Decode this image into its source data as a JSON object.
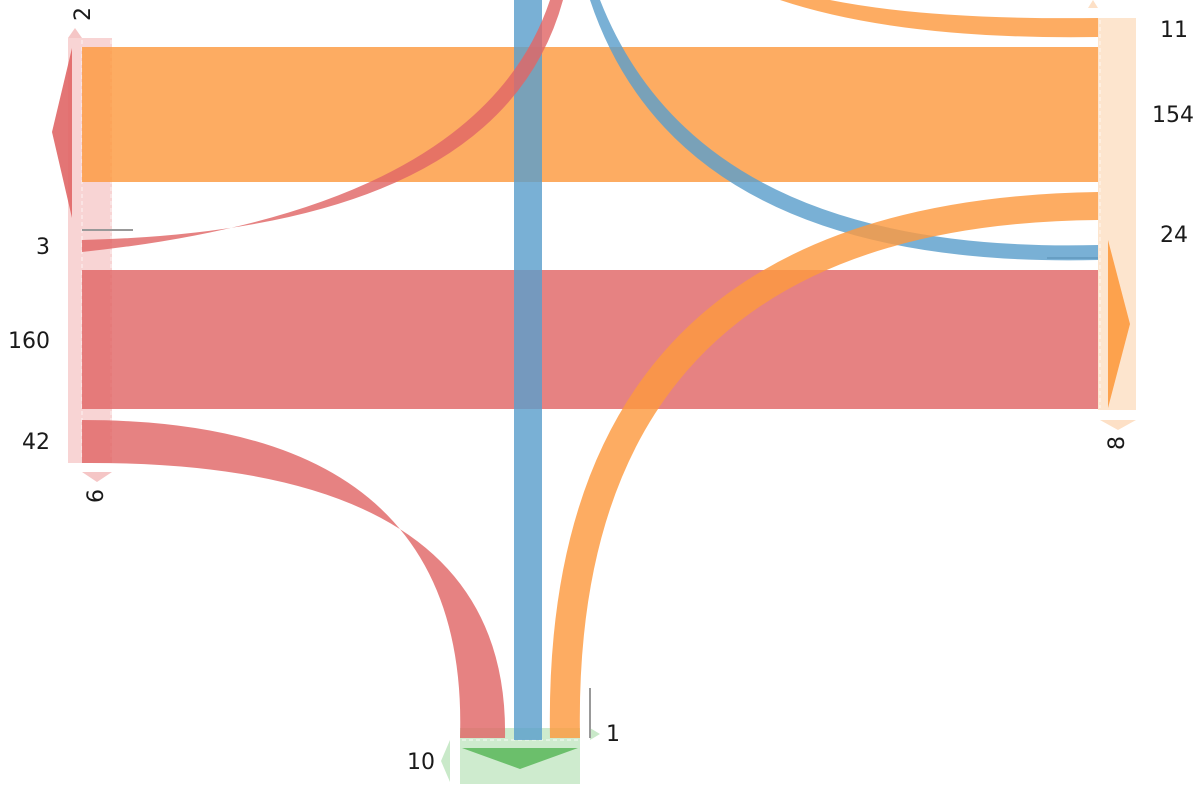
{
  "diagram": {
    "type": "chord-ribbon",
    "colors": {
      "red": "#e06666",
      "orange": "#fd9a3f",
      "blue": "#5b9fcc",
      "green": "#6bbf6b",
      "node_red_light": "#f5c6c6",
      "node_orange_light": "#fde0c6",
      "node_green_light": "#c9e9c9",
      "tick": "#999999"
    },
    "labels": {
      "left_top_rot": "2",
      "left_a": "3",
      "left_b": "160",
      "left_c": "42",
      "left_bottom_rot": "6",
      "right_a": "11",
      "right_b": "154",
      "right_c": "24",
      "right_bottom_rot": "8",
      "bottom_a": "1",
      "bottom_b": "10"
    }
  }
}
